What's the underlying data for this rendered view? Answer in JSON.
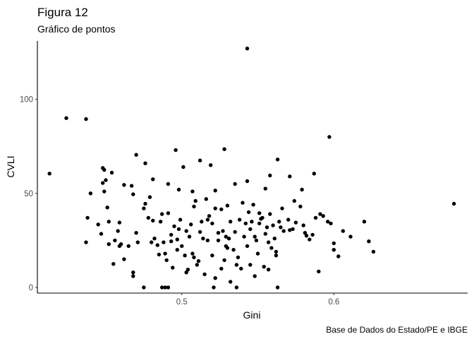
{
  "chart_data": {
    "type": "scatter",
    "title": "Figura 12",
    "subtitle": "Gráfico de pontos",
    "xlabel": "Gini",
    "ylabel": "CVLI",
    "caption": "Base de Dados do Estado/PE e IBGE",
    "xlim": [
      0.405,
      0.688
    ],
    "ylim": [
      -3,
      131
    ],
    "xticks": [
      {
        "value": 0.5,
        "label": "0.5"
      },
      {
        "value": 0.6,
        "label": "0.6"
      }
    ],
    "yticks": [
      {
        "value": 0,
        "label": "0"
      },
      {
        "value": 50,
        "label": "50"
      },
      {
        "value": 100,
        "label": "100"
      }
    ],
    "grid": false,
    "point_color": "#000000",
    "points": [
      [
        0.543,
        127
      ],
      [
        0.424,
        90
      ],
      [
        0.437,
        89.5
      ],
      [
        0.597,
        80
      ],
      [
        0.413,
        60.5
      ],
      [
        0.679,
        44.5
      ],
      [
        0.528,
        73.5
      ],
      [
        0.496,
        73
      ],
      [
        0.47,
        70.5
      ],
      [
        0.512,
        67.5
      ],
      [
        0.476,
        66
      ],
      [
        0.563,
        68
      ],
      [
        0.519,
        65
      ],
      [
        0.501,
        64
      ],
      [
        0.448,
        63.5
      ],
      [
        0.449,
        62.5
      ],
      [
        0.454,
        61
      ],
      [
        0.587,
        60.5
      ],
      [
        0.558,
        59.5
      ],
      [
        0.571,
        59
      ],
      [
        0.481,
        57.5
      ],
      [
        0.45,
        57
      ],
      [
        0.448,
        55.5
      ],
      [
        0.491,
        55
      ],
      [
        0.462,
        54.5
      ],
      [
        0.467,
        54
      ],
      [
        0.543,
        56.5
      ],
      [
        0.535,
        55
      ],
      [
        0.579,
        52
      ],
      [
        0.449,
        51
      ],
      [
        0.44,
        50
      ],
      [
        0.468,
        49.5
      ],
      [
        0.498,
        52
      ],
      [
        0.507,
        51
      ],
      [
        0.522,
        51.5
      ],
      [
        0.555,
        52.5
      ],
      [
        0.574,
        46
      ],
      [
        0.591,
        39
      ],
      [
        0.62,
        35
      ],
      [
        0.606,
        30
      ],
      [
        0.598,
        34
      ],
      [
        0.611,
        27
      ],
      [
        0.623,
        24.5
      ],
      [
        0.626,
        19
      ],
      [
        0.6,
        23.5
      ],
      [
        0.6,
        20
      ],
      [
        0.603,
        16.5
      ],
      [
        0.438,
        37
      ],
      [
        0.437,
        24
      ],
      [
        0.452,
        35
      ],
      [
        0.447,
        28.5
      ],
      [
        0.451,
        42.5
      ],
      [
        0.456,
        25
      ],
      [
        0.459,
        22
      ],
      [
        0.46,
        23
      ],
      [
        0.462,
        15
      ],
      [
        0.455,
        12.5
      ],
      [
        0.459,
        34.5
      ],
      [
        0.468,
        6
      ],
      [
        0.468,
        8
      ],
      [
        0.471,
        24
      ],
      [
        0.475,
        0
      ],
      [
        0.475,
        42
      ],
      [
        0.479,
        48
      ],
      [
        0.478,
        37
      ],
      [
        0.48,
        24
      ],
      [
        0.482,
        26
      ],
      [
        0.484,
        22.5
      ],
      [
        0.486,
        35
      ],
      [
        0.487,
        39
      ],
      [
        0.488,
        24
      ],
      [
        0.489,
        18
      ],
      [
        0.49,
        14.5
      ],
      [
        0.487,
        0
      ],
      [
        0.489,
        0
      ],
      [
        0.491,
        0
      ],
      [
        0.491,
        39.5
      ],
      [
        0.493,
        28
      ],
      [
        0.494,
        10.5
      ],
      [
        0.495,
        32.5
      ],
      [
        0.497,
        25.5
      ],
      [
        0.498,
        31
      ],
      [
        0.499,
        36
      ],
      [
        0.5,
        22
      ],
      [
        0.502,
        17
      ],
      [
        0.503,
        8
      ],
      [
        0.504,
        9.5
      ],
      [
        0.505,
        27
      ],
      [
        0.506,
        33.5
      ],
      [
        0.507,
        18
      ],
      [
        0.508,
        16
      ],
      [
        0.509,
        46
      ],
      [
        0.51,
        12
      ],
      [
        0.511,
        14
      ],
      [
        0.512,
        29.5
      ],
      [
        0.514,
        26
      ],
      [
        0.515,
        7
      ],
      [
        0.516,
        47
      ],
      [
        0.517,
        36
      ],
      [
        0.518,
        38
      ],
      [
        0.52,
        17
      ],
      [
        0.521,
        0
      ],
      [
        0.522,
        42
      ],
      [
        0.524,
        25
      ],
      [
        0.526,
        41.5
      ],
      [
        0.527,
        30
      ],
      [
        0.528,
        14.5
      ],
      [
        0.529,
        27
      ],
      [
        0.53,
        43.5
      ],
      [
        0.531,
        26
      ],
      [
        0.532,
        35
      ],
      [
        0.534,
        20
      ],
      [
        0.535,
        29.5
      ],
      [
        0.536,
        12
      ],
      [
        0.537,
        16
      ],
      [
        0.538,
        36
      ],
      [
        0.539,
        10
      ],
      [
        0.54,
        45
      ],
      [
        0.541,
        27
      ],
      [
        0.542,
        34
      ],
      [
        0.543,
        22
      ],
      [
        0.544,
        40
      ],
      [
        0.545,
        12
      ],
      [
        0.546,
        35
      ],
      [
        0.547,
        44
      ],
      [
        0.548,
        6
      ],
      [
        0.549,
        25
      ],
      [
        0.55,
        18
      ],
      [
        0.551,
        34
      ],
      [
        0.552,
        36.5
      ],
      [
        0.553,
        37
      ],
      [
        0.554,
        11
      ],
      [
        0.555,
        28.5
      ],
      [
        0.556,
        32
      ],
      [
        0.557,
        9.5
      ],
      [
        0.558,
        39
      ],
      [
        0.559,
        21
      ],
      [
        0.56,
        33
      ],
      [
        0.561,
        26
      ],
      [
        0.562,
        19
      ],
      [
        0.563,
        0
      ],
      [
        0.564,
        35
      ],
      [
        0.565,
        32
      ],
      [
        0.567,
        30
      ],
      [
        0.57,
        36
      ],
      [
        0.573,
        31
      ],
      [
        0.578,
        43
      ],
      [
        0.58,
        33
      ],
      [
        0.582,
        27.5
      ],
      [
        0.584,
        25.5
      ],
      [
        0.586,
        28
      ],
      [
        0.588,
        37
      ],
      [
        0.59,
        8.5
      ],
      [
        0.593,
        38
      ],
      [
        0.596,
        35
      ],
      [
        0.522,
        5
      ],
      [
        0.526,
        10
      ],
      [
        0.529,
        22
      ],
      [
        0.532,
        3
      ],
      [
        0.536,
        0
      ],
      [
        0.517,
        25
      ],
      [
        0.513,
        35
      ],
      [
        0.508,
        43
      ],
      [
        0.503,
        30
      ],
      [
        0.497,
        20
      ],
      [
        0.493,
        24.5
      ],
      [
        0.485,
        17.5
      ],
      [
        0.481,
        35.5
      ],
      [
        0.476,
        44.5
      ],
      [
        0.47,
        29
      ],
      [
        0.465,
        22
      ],
      [
        0.458,
        30
      ],
      [
        0.452,
        23
      ],
      [
        0.445,
        33.5
      ],
      [
        0.52,
        34
      ],
      [
        0.524,
        29
      ],
      [
        0.53,
        21
      ],
      [
        0.545,
        31
      ],
      [
        0.548,
        27
      ],
      [
        0.551,
        39.5
      ],
      [
        0.557,
        24
      ],
      [
        0.562,
        17
      ],
      [
        0.566,
        42
      ],
      [
        0.571,
        30.5
      ],
      [
        0.575,
        34.5
      ],
      [
        0.581,
        29
      ]
    ]
  }
}
